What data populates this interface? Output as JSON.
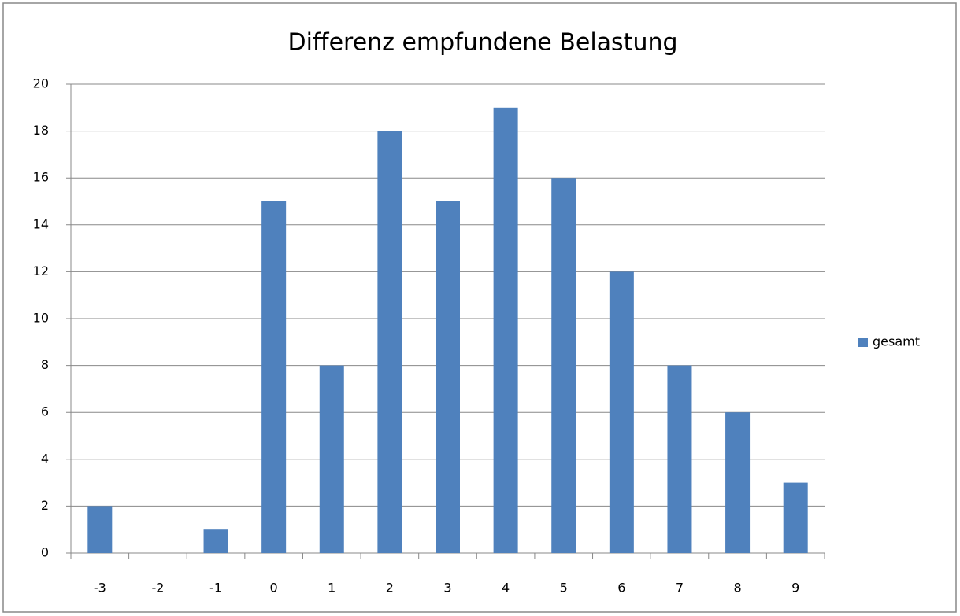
{
  "chart_data": {
    "type": "bar",
    "title": "Differenz empfundene Belastung",
    "categories": [
      "-3",
      "-2",
      "-1",
      "0",
      "1",
      "2",
      "3",
      "4",
      "5",
      "6",
      "7",
      "8",
      "9"
    ],
    "series": [
      {
        "name": "gesamt",
        "color": "#4f81bd",
        "values": [
          2,
          0,
          1,
          15,
          8,
          18,
          15,
          19,
          16,
          12,
          8,
          6,
          3
        ]
      }
    ],
    "ylim": [
      0,
      20
    ],
    "yticks": [
      0,
      2,
      4,
      6,
      8,
      10,
      12,
      14,
      16,
      18,
      20
    ],
    "grid": true,
    "legend": "right"
  }
}
